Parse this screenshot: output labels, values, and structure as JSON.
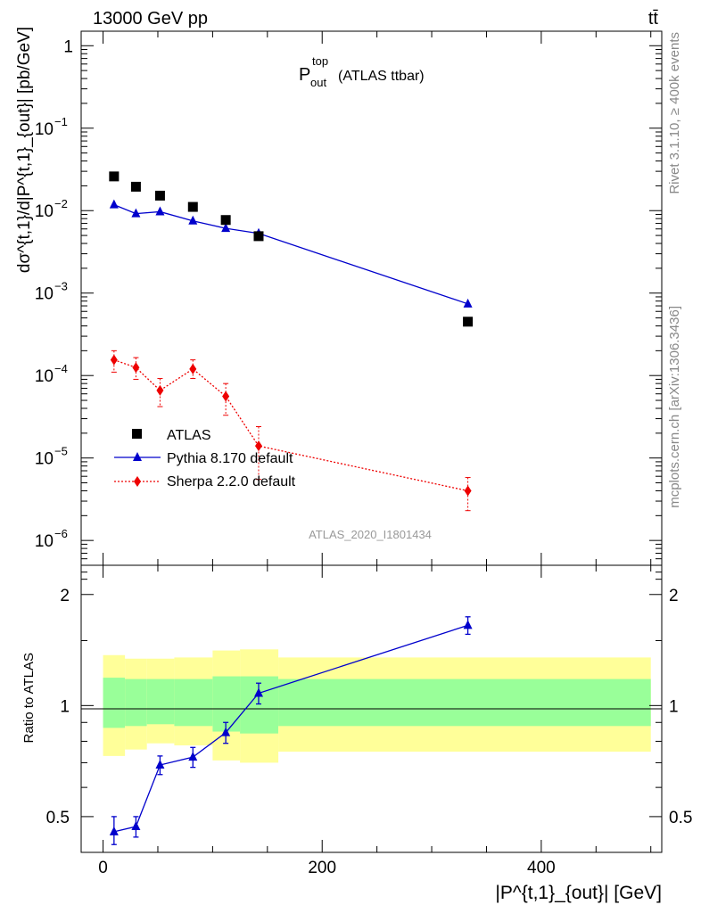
{
  "header": {
    "energy_label": "13000 GeV pp",
    "process_label": "tt̄",
    "plot_title_main": "P",
    "plot_title_sup": "top",
    "plot_title_sub": "out",
    "plot_title_rest": "(ATLAS ttbar)",
    "analysis_id": "ATLAS_2020_I1801434",
    "side_label_top": "Rivet 3.1.10, ≥ 400k events",
    "side_label_bottom": "mcplots.cern.ch [arXiv:1306.3436]"
  },
  "axes": {
    "ylabel_main": "dσ^{t,1}/d|P^{t,1}_{out}| [pb/GeV]",
    "ylabel_ratio": "Ratio to ATLAS",
    "xlabel": "|P^{t,1}_{out}| [GeV]",
    "main_ticks": [
      "1",
      "10",
      "10",
      "10",
      "10",
      "10",
      "10"
    ],
    "main_tick_exps": [
      "",
      "−1",
      "−2",
      "−3",
      "−4",
      "−5",
      "−6"
    ],
    "ratio_ticks": [
      "2",
      "1",
      "0.5"
    ],
    "x_ticks": [
      "0",
      "200",
      "400"
    ]
  },
  "legend": {
    "atlas": "ATLAS",
    "pythia": "Pythia 8.170 default",
    "sherpa": "Sherpa 2.2.0 default"
  },
  "colors": {
    "atlas": "#000000",
    "pythia": "#0000cc",
    "sherpa": "#ee0000",
    "band_inner": "#99ff99",
    "band_outer": "#ffff99"
  },
  "chart_data": [
    {
      "type": "scatter",
      "panel": "main",
      "yscale": "log",
      "xlim": [
        -20,
        510
      ],
      "ylim": [
        5e-07,
        1.5
      ],
      "series": [
        {
          "name": "ATLAS",
          "x": [
            10,
            30,
            52,
            82,
            112,
            142,
            333
          ],
          "y": [
            0.026,
            0.0195,
            0.0152,
            0.0111,
            0.0077,
            0.0049,
            0.00045
          ]
        },
        {
          "name": "Pythia 8.170 default",
          "x": [
            10,
            30,
            52,
            82,
            112,
            142,
            333
          ],
          "y": [
            0.0118,
            0.0092,
            0.0097,
            0.0075,
            0.0061,
            0.0053,
            0.00074
          ]
        },
        {
          "name": "Sherpa 2.2.0 default",
          "x": [
            10,
            30,
            52,
            82,
            112,
            142,
            333
          ],
          "y": [
            0.000155,
            0.000125,
            6.6e-05,
            0.00012,
            5.6e-05,
            1.4e-05,
            4e-06
          ],
          "yerr_low": [
            0.00011,
            9e-05,
            4.2e-05,
            9.2e-05,
            3.3e-05,
            5.5e-06,
            2.3e-06
          ],
          "yerr_high": [
            0.0002,
            0.000165,
            9.2e-05,
            0.000155,
            8e-05,
            2.4e-05,
            5.8e-06
          ]
        }
      ]
    },
    {
      "type": "line",
      "panel": "ratio",
      "yscale": "log",
      "xlim": [
        -20,
        510
      ],
      "ylim": [
        0.4,
        2.4
      ],
      "series": [
        {
          "name": "Pythia 8.170 default",
          "x": [
            10,
            30,
            52,
            82,
            112,
            142,
            333
          ],
          "y": [
            0.455,
            0.47,
            0.69,
            0.725,
            0.845,
            1.08,
            1.65
          ],
          "yerr_low": [
            0.42,
            0.44,
            0.65,
            0.68,
            0.79,
            1.01,
            1.56
          ],
          "yerr_high": [
            0.5,
            0.5,
            0.73,
            0.77,
            0.9,
            1.15,
            1.74
          ]
        }
      ],
      "bands": [
        {
          "x0": 0,
          "x1": 20,
          "inner": [
            0.87,
            1.19
          ],
          "outer": [
            0.73,
            1.37
          ]
        },
        {
          "x0": 20,
          "x1": 40,
          "inner": [
            0.88,
            1.18
          ],
          "outer": [
            0.76,
            1.34
          ]
        },
        {
          "x0": 40,
          "x1": 65,
          "inner": [
            0.89,
            1.18
          ],
          "outer": [
            0.79,
            1.34
          ]
        },
        {
          "x0": 65,
          "x1": 100,
          "inner": [
            0.88,
            1.18
          ],
          "outer": [
            0.78,
            1.35
          ]
        },
        {
          "x0": 100,
          "x1": 125,
          "inner": [
            0.85,
            1.2
          ],
          "outer": [
            0.71,
            1.41
          ]
        },
        {
          "x0": 125,
          "x1": 160,
          "inner": [
            0.84,
            1.2
          ],
          "outer": [
            0.7,
            1.42
          ]
        },
        {
          "x0": 160,
          "x1": 500,
          "inner": [
            0.88,
            1.18
          ],
          "outer": [
            0.75,
            1.35
          ]
        }
      ]
    }
  ]
}
